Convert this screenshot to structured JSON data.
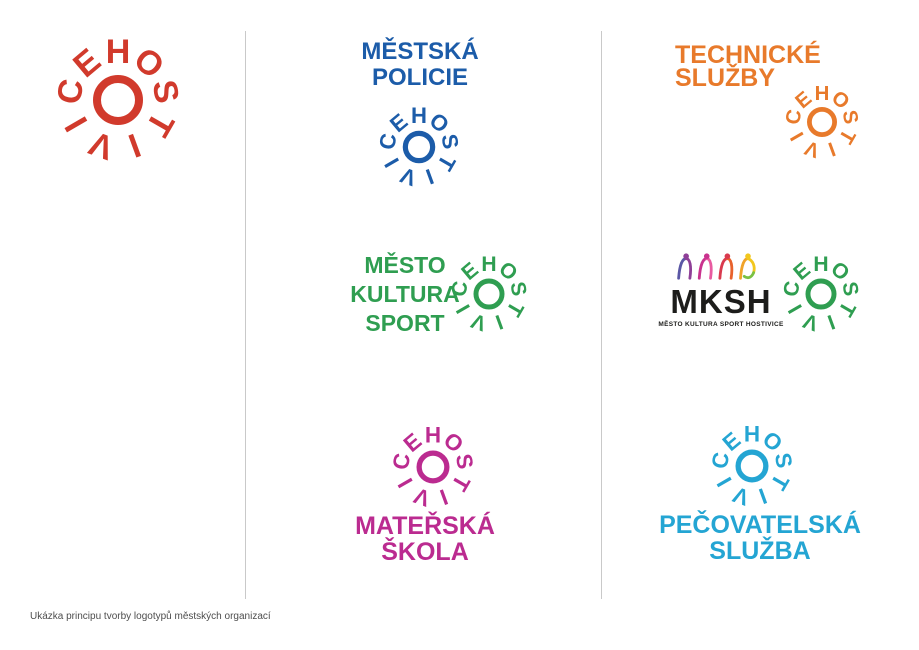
{
  "canvas": {
    "background": "#ffffff",
    "divider_color": "#c9c9c9"
  },
  "logo": {
    "word": "HOSTIVICE",
    "center_glyph": "O-ring"
  },
  "master": {
    "color": "#d13a2c"
  },
  "policie": {
    "line1": "MĚSTSKÁ",
    "line2": "POLICIE",
    "color": "#1c5ca9"
  },
  "technicke": {
    "line1": "TECHNICKÉ",
    "line2": "SLUŽBY",
    "color": "#e87a2b"
  },
  "kultura": {
    "line1": "MĚSTO",
    "line2": "KULTURA",
    "line3": "SPORT",
    "color": "#2f9e51"
  },
  "mksh": {
    "title": "MKSH",
    "tagline": "MĚSTO KULTURA SPORT HOSTIVICE",
    "text_color": "#1d1d1b",
    "logo_color": "#2f9e51",
    "figure_colors": [
      "#5a57a5",
      "#8e3f97",
      "#c9328e",
      "#e85aa0",
      "#d93a4e",
      "#e8622c",
      "#f0a32a",
      "#f2c71d",
      "#7ac143"
    ]
  },
  "materska": {
    "line1": "MATEŘSKÁ",
    "line2": "ŠKOLA",
    "color": "#bb2b90"
  },
  "pecovatelska": {
    "line1": "PEČOVATELSKÁ",
    "line2": "SLUŽBA",
    "color": "#24a5d3"
  },
  "caption": {
    "text": "Ukázka principu tvorby logotypů městských organizací",
    "color": "#4d4d4d"
  }
}
